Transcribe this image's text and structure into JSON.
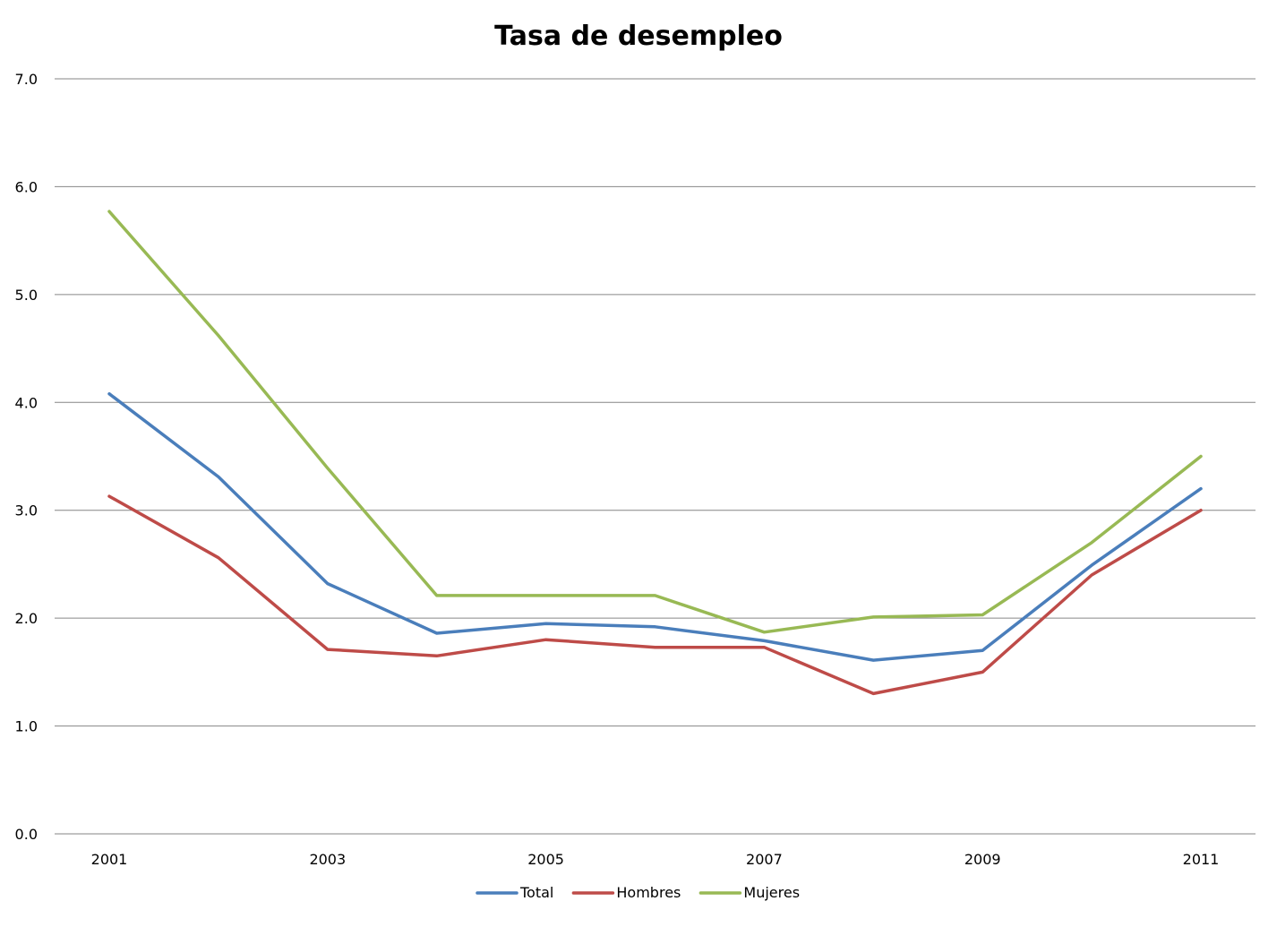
{
  "chart_data": {
    "type": "line",
    "title": "Tasa de desempleo",
    "xlabel": "",
    "ylabel": "",
    "x": [
      2001,
      2002,
      2003,
      2004,
      2005,
      2006,
      2007,
      2008,
      2009,
      2010,
      2011
    ],
    "x_tick_labels": [
      "2001",
      "2003",
      "2005",
      "2007",
      "2009",
      "2011"
    ],
    "x_tick_values": [
      2001,
      2003,
      2005,
      2007,
      2009,
      2011
    ],
    "ylim": [
      0,
      7
    ],
    "y_ticks": [
      0,
      1,
      2,
      3,
      4,
      5,
      6,
      7
    ],
    "y_tick_labels": [
      "0.0",
      "1.0",
      "2.0",
      "3.0",
      "4.0",
      "5.0",
      "6.0",
      "7.0"
    ],
    "grid": true,
    "legend_position": "bottom",
    "series": [
      {
        "name": "Total",
        "color": "#4a7ebb",
        "values": [
          4.08,
          3.31,
          2.32,
          1.86,
          1.95,
          1.92,
          1.79,
          1.61,
          1.7,
          2.49,
          3.2
        ]
      },
      {
        "name": "Hombres",
        "color": "#be4b48",
        "values": [
          3.13,
          2.56,
          1.71,
          1.65,
          1.8,
          1.73,
          1.73,
          1.3,
          1.5,
          2.4,
          3.0
        ]
      },
      {
        "name": "Mujeres",
        "color": "#98b954",
        "values": [
          5.77,
          4.62,
          3.39,
          2.21,
          2.21,
          2.21,
          1.87,
          2.01,
          2.03,
          2.7,
          3.5
        ]
      }
    ]
  }
}
